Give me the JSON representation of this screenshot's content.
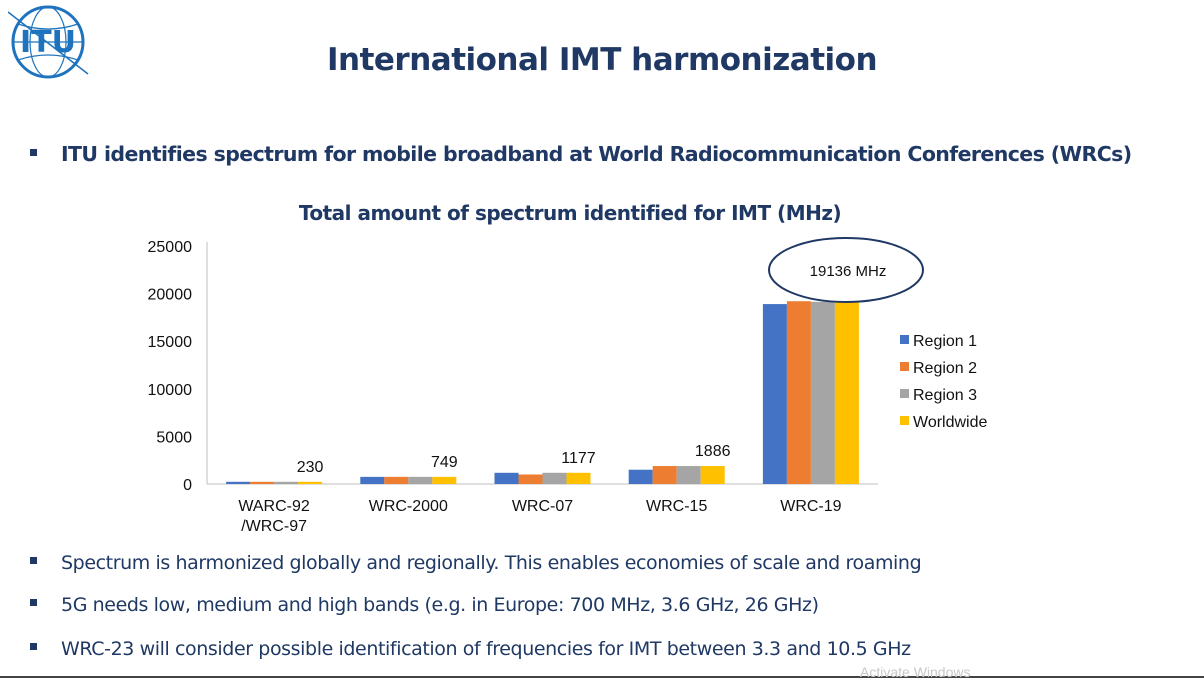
{
  "page": {
    "title": "International IMT harmonization",
    "intro_bullet": "ITU identifies spectrum for mobile broadband at World Radiocommunication Conferences (WRCs)",
    "bullets": [
      "Spectrum is harmonized globally and regionally. This enables economies of scale and roaming",
      "5G needs low, medium and high bands (e.g. in Europe: 700 MHz, 3.6 GHz, 26 GHz)",
      "WRC-23 will consider possible identification of frequencies for IMT between 3.3 and 10.5 GHz"
    ],
    "logo_text": "ITU"
  },
  "colors": {
    "accent": "#1f3864",
    "region1": "#4472c4",
    "region2": "#ed7d31",
    "region3": "#a5a5a5",
    "worldwide": "#ffc000"
  },
  "chart_data": {
    "type": "bar",
    "title": "Total amount of spectrum identified for IMT (MHz)",
    "xlabel": "",
    "ylabel": "",
    "ylim": [
      0,
      25000
    ],
    "yticks": [
      0,
      5000,
      10000,
      15000,
      20000,
      25000
    ],
    "categories": [
      [
        "WARC-92",
        "/WRC-97"
      ],
      [
        "WRC-2000"
      ],
      [
        "WRC-07"
      ],
      [
        "WRC-15"
      ],
      [
        "WRC-19"
      ]
    ],
    "series": [
      {
        "name": "Region 1",
        "values": [
          230,
          749,
          1177,
          1500,
          18900
        ]
      },
      {
        "name": "Region 2",
        "values": [
          230,
          749,
          1000,
          1886,
          19200
        ]
      },
      {
        "name": "Region 3",
        "values": [
          230,
          749,
          1177,
          1886,
          19136
        ]
      },
      {
        "name": "Worldwide",
        "values": [
          230,
          749,
          1177,
          1886,
          19136
        ]
      }
    ],
    "data_labels": [
      "230",
      "749",
      "1177",
      "1886"
    ],
    "annotation": "19136 MHz",
    "legend_position": "right"
  },
  "watermark": "Activate Windows"
}
